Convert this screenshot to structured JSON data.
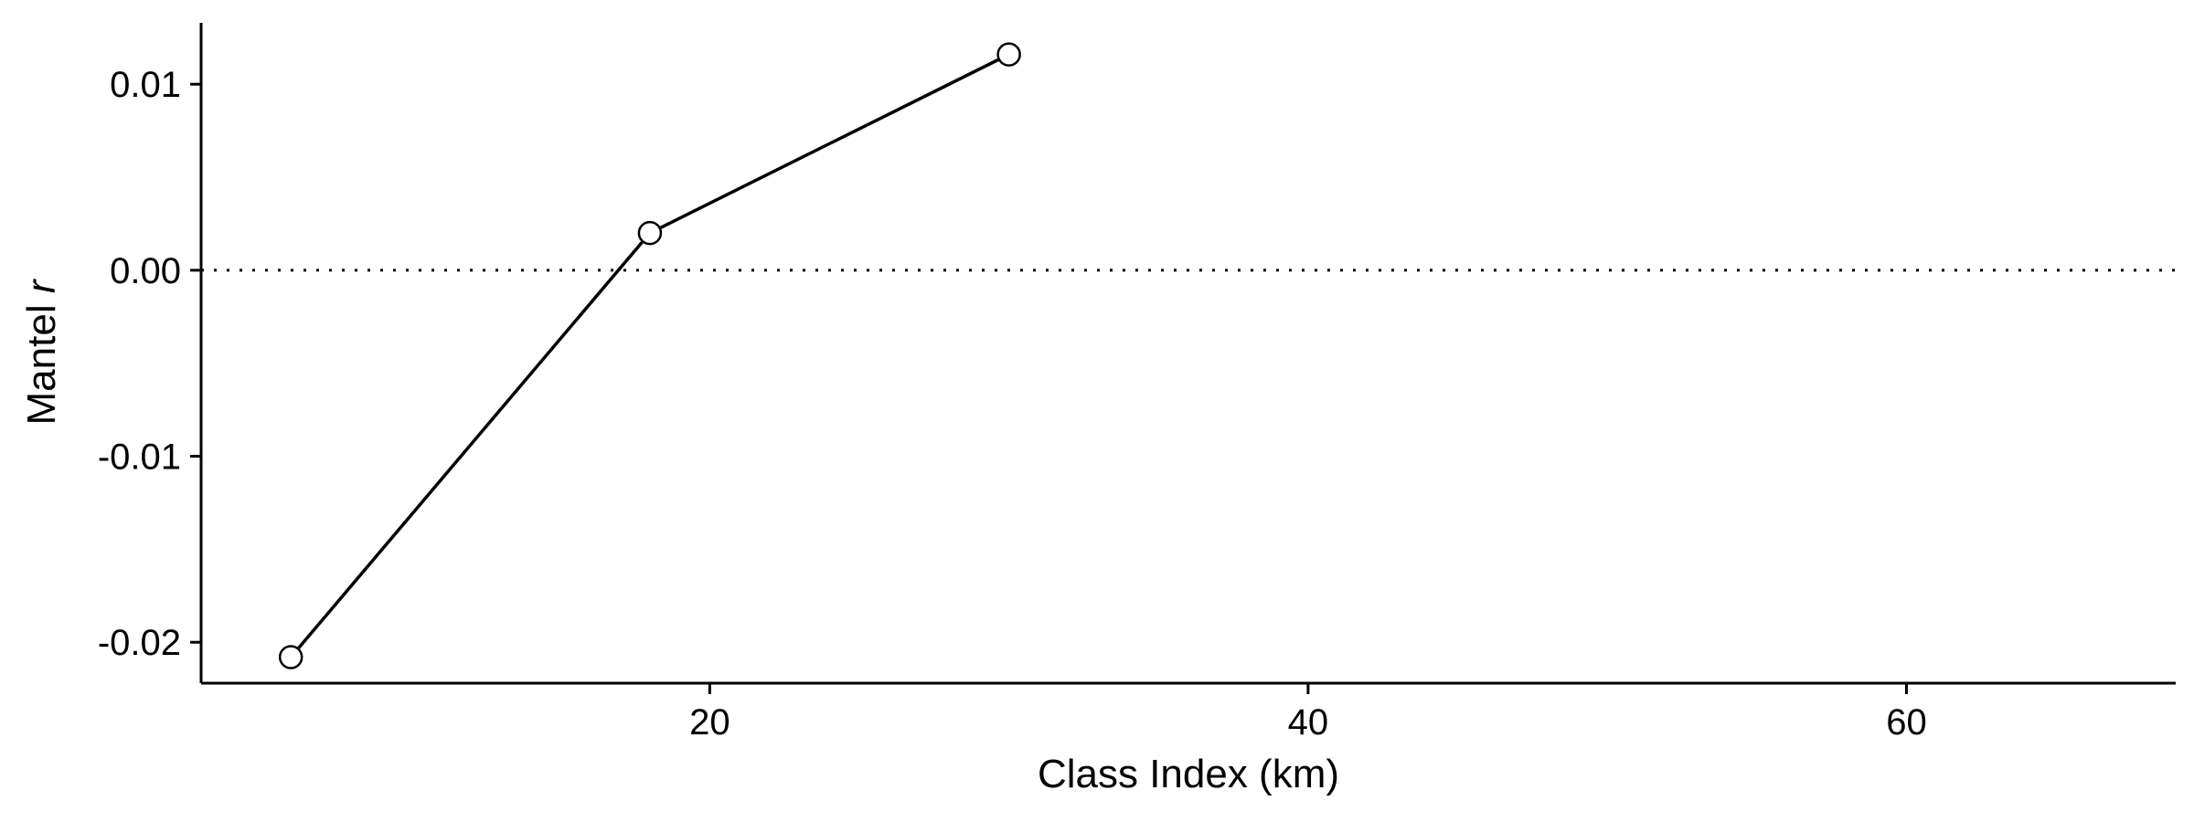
{
  "chart_data": {
    "type": "line",
    "title": "",
    "xlabel": "Class Index (km)",
    "ylabel_prefix": "Mantel ",
    "ylabel_italic": "r",
    "xlim": [
      3,
      69
    ],
    "ylim": [
      -0.0222,
      0.0133
    ],
    "xticks": [
      20,
      40,
      60
    ],
    "xtick_labels": [
      "20",
      "40",
      "60"
    ],
    "yticks": [
      -0.02,
      -0.01,
      0.0,
      0.01
    ],
    "ytick_labels": [
      "-0.02",
      "-0.01",
      "0.00",
      "0.01"
    ],
    "reference_line": {
      "y": 0.0,
      "style": "dotted"
    },
    "grid": false,
    "legend": "none",
    "series": [
      {
        "x": [
          6,
          18,
          30
        ],
        "y": [
          -0.0208,
          0.002,
          0.0116
        ]
      }
    ],
    "colors": {
      "line": "#000000",
      "marker_fill": "#ffffff",
      "marker_edge": "#000000",
      "axis": "#000000"
    }
  }
}
